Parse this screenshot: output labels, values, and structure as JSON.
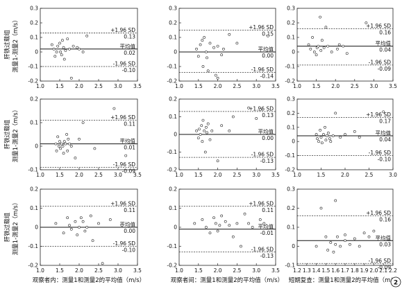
{
  "figure_number": "2",
  "rows": [
    {
      "label_line1": "肝铁过载组",
      "label_line2": "测量1-测量2（m/s）"
    },
    {
      "label_line1": "肝铁过载组",
      "label_line2": "测量1-测量2（m/s）"
    },
    {
      "label_line1": "肝铁过载组",
      "label_line2": "测量1-测量2（m/s）"
    }
  ],
  "column_xtitles": [
    "观察者内：测量1和测量2的平均值（m/s）",
    "观察者间：测量1和测量2的平均值（m/s）",
    "短期复查：测量1和测量2的平均值（m/s）"
  ],
  "chart_data": [
    {
      "type": "scatter",
      "row": 0,
      "col": 0,
      "xlim": [
        1.0,
        3.5
      ],
      "ylim": [
        -0.2,
        0.3
      ],
      "xticks": [
        "1.0",
        "1.5",
        "2.0",
        "2.5",
        "3.0",
        "3.5"
      ],
      "yticks": [
        "-0.2",
        "-0.1",
        "0",
        "0.1",
        "0.2",
        "0.3"
      ],
      "upper": {
        "label": "+1.96 SD",
        "text": "0.13",
        "value": 0.13
      },
      "mean": {
        "label": "平均值",
        "text": "0.02",
        "value": 0.02
      },
      "lower": {
        "label": "-1.96 SD",
        "text": "-0.10",
        "value": -0.1
      },
      "points": [
        [
          1.3,
          0.05
        ],
        [
          1.35,
          0.02
        ],
        [
          1.38,
          -0.03
        ],
        [
          1.42,
          0.0
        ],
        [
          1.45,
          0.04
        ],
        [
          1.5,
          0.06
        ],
        [
          1.52,
          0.0
        ],
        [
          1.55,
          -0.02
        ],
        [
          1.57,
          0.08
        ],
        [
          1.6,
          0.03
        ],
        [
          1.62,
          -0.05
        ],
        [
          1.65,
          0.01
        ],
        [
          1.7,
          0.09
        ],
        [
          1.75,
          0.02
        ],
        [
          1.8,
          -0.18
        ],
        [
          1.85,
          0.04
        ],
        [
          1.95,
          0.03
        ],
        [
          2.0,
          0.02
        ],
        [
          2.1,
          0.0
        ],
        [
          2.2,
          0.11
        ]
      ]
    },
    {
      "type": "scatter",
      "row": 0,
      "col": 1,
      "xlim": [
        1.0,
        3.5
      ],
      "ylim": [
        -0.2,
        0.3
      ],
      "xticks": [
        "1.0",
        "1.5",
        "2.0",
        "2.5",
        "3.0",
        "3.5"
      ],
      "yticks": [
        "-0.2",
        "-0.1",
        "0",
        "0.1",
        "0.2",
        "0.3"
      ],
      "upper": {
        "label": "+1.96 SD",
        "text": "0.15",
        "value": 0.15
      },
      "mean": {
        "label": "平均值",
        "text": "0.00",
        "value": 0.0
      },
      "lower": {
        "label": "-1.96 SD",
        "text": "-0.14",
        "value": -0.14
      },
      "points": [
        [
          1.45,
          0.02
        ],
        [
          1.5,
          -0.03
        ],
        [
          1.55,
          0.05
        ],
        [
          1.6,
          0.08
        ],
        [
          1.62,
          -0.1
        ],
        [
          1.65,
          0.1
        ],
        [
          1.7,
          0.0
        ],
        [
          1.72,
          -0.04
        ],
        [
          1.75,
          -0.13
        ],
        [
          1.8,
          0.06
        ],
        [
          1.9,
          0.03
        ],
        [
          1.95,
          -0.16
        ],
        [
          2.0,
          -0.18
        ],
        [
          2.0,
          0.04
        ],
        [
          2.1,
          -0.02
        ],
        [
          2.15,
          0.02
        ],
        [
          2.3,
          0.12
        ],
        [
          2.5,
          0.06
        ],
        [
          3.3,
          0.11
        ]
      ]
    },
    {
      "type": "scatter",
      "row": 0,
      "col": 2,
      "xlim": [
        1.0,
        3.5
      ],
      "ylim": [
        -0.2,
        0.3
      ],
      "xticks": [
        "1.0",
        "1.5",
        "2.0",
        "2.5",
        "3.0",
        "3.5"
      ],
      "yticks": [
        "-0.2",
        "-0.1",
        "0",
        "0.1",
        "0.2",
        "0.3"
      ],
      "upper": {
        "label": "+1.96 SD",
        "text": "0.16",
        "value": 0.16
      },
      "mean": {
        "label": "平均值",
        "text": "0.04",
        "value": 0.04
      },
      "lower": {
        "label": "-1.96 SD",
        "text": "-0.09",
        "value": -0.09
      },
      "points": [
        [
          1.3,
          0.05
        ],
        [
          1.35,
          0.02
        ],
        [
          1.4,
          0.1
        ],
        [
          1.45,
          0.0
        ],
        [
          1.5,
          -0.02
        ],
        [
          1.52,
          0.03
        ],
        [
          1.55,
          0.04
        ],
        [
          1.6,
          0.24
        ],
        [
          1.62,
          0.01
        ],
        [
          1.65,
          0.08
        ],
        [
          1.7,
          0.03
        ],
        [
          1.75,
          0.17
        ],
        [
          1.8,
          0.04
        ],
        [
          1.9,
          0.0
        ],
        [
          2.05,
          0.02
        ],
        [
          2.1,
          0.05
        ],
        [
          2.2,
          0.04
        ],
        [
          2.3,
          -0.01
        ],
        [
          2.8,
          0.2
        ]
      ]
    },
    {
      "type": "scatter",
      "row": 1,
      "col": 0,
      "xlim": [
        1.0,
        3.5
      ],
      "ylim": [
        -0.1,
        0.2
      ],
      "xticks": [
        "1.0",
        "1.5",
        "2.0",
        "2.5",
        "3.0",
        "3.5"
      ],
      "yticks": [
        "-0.1",
        "0",
        "0.1",
        "0.2"
      ],
      "upper": {
        "label": "+1.96 SD",
        "text": "0.11",
        "value": 0.11
      },
      "mean": {
        "label": "平均值",
        "text": "0.01",
        "value": 0.01
      },
      "lower": {
        "label": "-1.96 SD",
        "text": "-0.09",
        "value": -0.09
      },
      "points": [
        [
          1.4,
          0.01
        ],
        [
          1.42,
          -0.02
        ],
        [
          1.45,
          0.04
        ],
        [
          1.48,
          0.0
        ],
        [
          1.5,
          0.02
        ],
        [
          1.52,
          -0.01
        ],
        [
          1.55,
          0.01
        ],
        [
          1.58,
          0.0
        ],
        [
          1.6,
          -0.03
        ],
        [
          1.62,
          0.02
        ],
        [
          1.65,
          0.01
        ],
        [
          1.68,
          0.05
        ],
        [
          1.7,
          -0.02
        ],
        [
          1.72,
          0.03
        ],
        [
          1.75,
          0.01
        ],
        [
          1.8,
          0.0
        ],
        [
          1.9,
          -0.05
        ],
        [
          2.0,
          0.03
        ],
        [
          2.1,
          0.1
        ],
        [
          2.4,
          -0.01
        ],
        [
          2.9,
          0.16
        ],
        [
          3.2,
          -0.04
        ]
      ]
    },
    {
      "type": "scatter",
      "row": 1,
      "col": 1,
      "xlim": [
        1.0,
        3.5
      ],
      "ylim": [
        -0.2,
        0.2
      ],
      "xticks": [
        "1.0",
        "1.5",
        "2.0",
        "2.5",
        "3.0",
        "3.5"
      ],
      "yticks": [
        "-0.2",
        "-0.1",
        "0",
        "0.1",
        "0.2"
      ],
      "upper": {
        "label": "+1.96 SD",
        "text": "0.13",
        "value": 0.13
      },
      "mean": {
        "label": "平均值",
        "text": "0.00",
        "value": 0.0
      },
      "lower": {
        "label": "-1.96 SD",
        "text": "-0.13",
        "value": -0.13
      },
      "points": [
        [
          1.45,
          0.02
        ],
        [
          1.5,
          -0.02
        ],
        [
          1.52,
          0.03
        ],
        [
          1.55,
          0.0
        ],
        [
          1.58,
          0.05
        ],
        [
          1.6,
          -0.04
        ],
        [
          1.62,
          0.08
        ],
        [
          1.65,
          0.02
        ],
        [
          1.68,
          -0.1
        ],
        [
          1.7,
          0.04
        ],
        [
          1.72,
          0.01
        ],
        [
          1.75,
          0.06
        ],
        [
          1.8,
          -0.03
        ],
        [
          1.85,
          0.02
        ],
        [
          2.0,
          -0.15
        ],
        [
          2.1,
          0.05
        ],
        [
          2.3,
          0.02
        ],
        [
          2.4,
          0.1
        ],
        [
          2.8,
          0.15
        ],
        [
          3.0,
          0.09
        ],
        [
          3.1,
          0.14
        ]
      ]
    },
    {
      "type": "scatter",
      "row": 1,
      "col": 2,
      "xlim": [
        1.0,
        3.0
      ],
      "ylim": [
        -0.2,
        0.3
      ],
      "xticks": [
        "1.0",
        "1.5",
        "2.0",
        "2.5",
        "3.0"
      ],
      "yticks": [
        "-0.2",
        "-0.1",
        "0",
        "0.1",
        "0.2",
        "0.3"
      ],
      "upper": {
        "label": "+1.96 SD",
        "text": "0.17",
        "value": 0.17
      },
      "mean": {
        "label": "平均值",
        "text": "0.04",
        "value": 0.04
      },
      "lower": {
        "label": "-1.96 SD",
        "text": "-0.10",
        "value": -0.1
      },
      "points": [
        [
          1.4,
          0.05
        ],
        [
          1.42,
          0.02
        ],
        [
          1.45,
          0.0
        ],
        [
          1.48,
          0.08
        ],
        [
          1.5,
          0.03
        ],
        [
          1.52,
          -0.01
        ],
        [
          1.55,
          0.05
        ],
        [
          1.58,
          0.1
        ],
        [
          1.6,
          0.01
        ],
        [
          1.62,
          0.04
        ],
        [
          1.65,
          0.06
        ],
        [
          1.68,
          0.02
        ],
        [
          1.7,
          0.0
        ],
        [
          1.75,
          0.04
        ],
        [
          1.8,
          0.2
        ],
        [
          1.9,
          0.03
        ],
        [
          2.0,
          0.05
        ],
        [
          2.2,
          0.07
        ],
        [
          2.3,
          0.03
        ],
        [
          2.8,
          0.21
        ]
      ]
    },
    {
      "type": "scatter",
      "row": 2,
      "col": 0,
      "xlim": [
        1.0,
        3.5
      ],
      "ylim": [
        -0.2,
        0.2
      ],
      "xticks": [
        "1.0",
        "1.5",
        "2.0",
        "2.5",
        "3.0",
        "3.5"
      ],
      "yticks": [
        "-0.2",
        "-0.1",
        "0",
        "0.1",
        "0.2"
      ],
      "upper": {
        "label": "+1.96 SD",
        "text": "0.11",
        "value": 0.11
      },
      "mean": {
        "label": "平均值",
        "text": "0.00",
        "value": 0.0
      },
      "lower": {
        "label": "-1.96 SD",
        "text": "-0.10",
        "value": -0.1
      },
      "points": [
        [
          1.4,
          0.02
        ],
        [
          1.6,
          -0.03
        ],
        [
          1.7,
          0.05
        ],
        [
          1.75,
          0.01
        ],
        [
          1.8,
          -0.01
        ],
        [
          1.9,
          0.03
        ],
        [
          1.95,
          -0.04
        ],
        [
          2.0,
          0.0
        ],
        [
          2.05,
          0.05
        ],
        [
          2.1,
          0.03
        ],
        [
          2.15,
          -0.02
        ],
        [
          2.2,
          0.0
        ],
        [
          2.3,
          0.06
        ],
        [
          2.35,
          -0.07
        ],
        [
          2.5,
          0.02
        ],
        [
          2.6,
          -0.19
        ],
        [
          2.8,
          0.04
        ],
        [
          3.1,
          0.01
        ]
      ]
    },
    {
      "type": "scatter",
      "row": 2,
      "col": 1,
      "xlim": [
        1.0,
        3.5
      ],
      "ylim": [
        -0.2,
        0.2
      ],
      "xticks": [
        "1.0",
        "1.5",
        "2.0",
        "2.5",
        "3.0",
        "3.5"
      ],
      "yticks": [
        "-0.2",
        "-0.1",
        "0",
        "0.1",
        "0.2"
      ],
      "upper": {
        "label": "+1.96 SD",
        "text": "0.11",
        "value": 0.11
      },
      "mean": {
        "label": "平均值",
        "text": "-0.01",
        "value": -0.01
      },
      "lower": {
        "label": "-1.96 SD",
        "text": "-0.13",
        "value": -0.13
      },
      "points": [
        [
          1.4,
          0.02
        ],
        [
          1.6,
          0.04
        ],
        [
          1.7,
          0.0
        ],
        [
          1.8,
          -0.03
        ],
        [
          1.9,
          0.05
        ],
        [
          1.95,
          0.02
        ],
        [
          2.0,
          -0.02
        ],
        [
          2.05,
          0.01
        ],
        [
          2.1,
          0.06
        ],
        [
          2.2,
          0.03
        ],
        [
          2.3,
          0.01
        ],
        [
          2.4,
          -0.05
        ],
        [
          2.5,
          0.02
        ],
        [
          2.6,
          -0.1
        ],
        [
          2.7,
          0.07
        ],
        [
          2.8,
          0.02
        ],
        [
          2.9,
          0.0
        ],
        [
          3.1,
          0.04
        ],
        [
          3.2,
          0.02
        ]
      ]
    },
    {
      "type": "scatter",
      "row": 2,
      "col": 2,
      "xlim": [
        1.2,
        2.2
      ],
      "ylim": [
        -0.1,
        0.3
      ],
      "xticks": [
        "1.2",
        "1.3",
        "1.4",
        "1.5",
        "1.6",
        "1.7",
        "1.8",
        "1.9",
        "2.0",
        "2.1",
        "2.2"
      ],
      "yticks": [
        "-0.1",
        "0",
        "0.1",
        "0.2",
        "0.3"
      ],
      "upper": {
        "label": "+1.96 SD",
        "text": "0.16",
        "value": 0.16
      },
      "mean": {
        "label": "平均值",
        "text": "0.03",
        "value": 0.03
      },
      "lower": {
        "label": "-1.96 SD",
        "text": "-0.09",
        "value": -0.09
      },
      "points": [
        [
          1.4,
          0.0
        ],
        [
          1.45,
          0.2
        ],
        [
          1.5,
          0.05
        ],
        [
          1.52,
          -0.02
        ],
        [
          1.55,
          0.02
        ],
        [
          1.58,
          -0.03
        ],
        [
          1.6,
          0.01
        ],
        [
          1.62,
          0.05
        ],
        [
          1.65,
          0.0
        ],
        [
          1.7,
          0.06
        ],
        [
          1.75,
          0.01
        ],
        [
          1.8,
          0.04
        ],
        [
          1.85,
          0.0
        ],
        [
          1.9,
          0.07
        ],
        [
          1.95,
          0.05
        ],
        [
          2.0,
          0.08
        ],
        [
          1.6,
          0.24
        ],
        [
          1.7,
          0.03
        ]
      ]
    }
  ]
}
